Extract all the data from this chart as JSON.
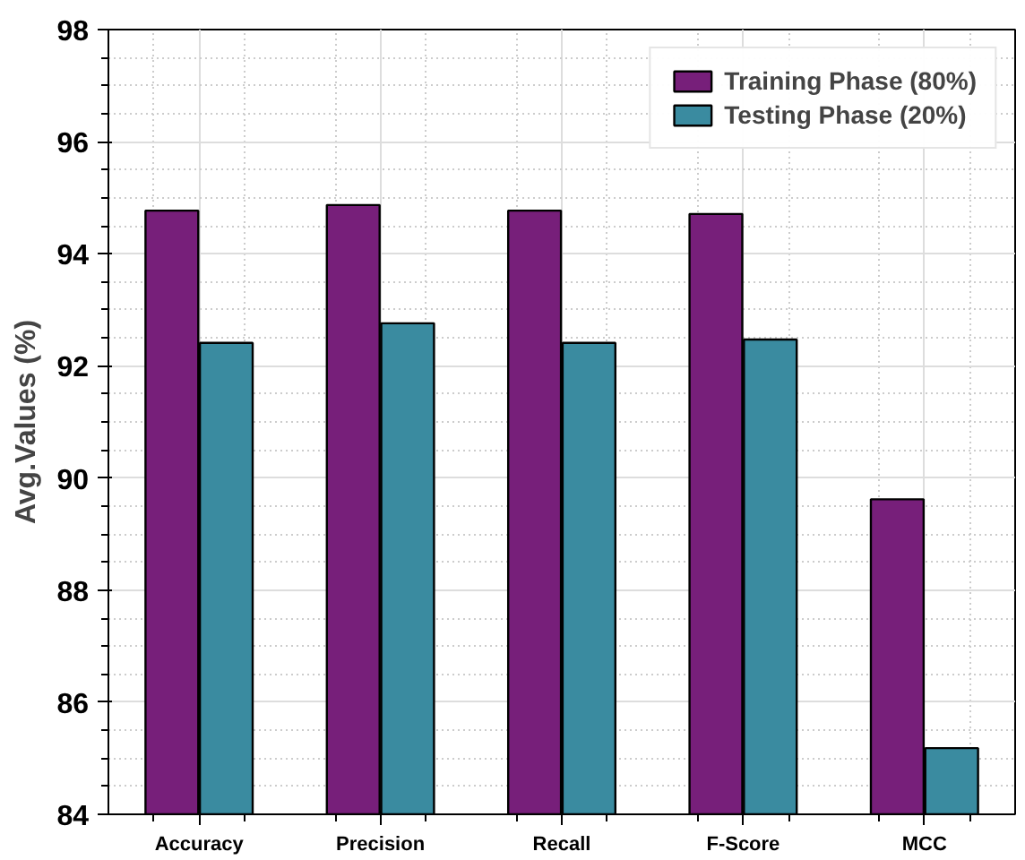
{
  "chart_data": {
    "type": "bar",
    "ylabel": "Avg.Values (%)",
    "categories": [
      "Accuracy",
      "Precision",
      "Recall",
      "F-Score",
      "MCC"
    ],
    "series": [
      {
        "name": "Training Phase (80%)",
        "color": "#771f7a",
        "values": [
          94.77,
          94.87,
          94.77,
          94.71,
          89.62
        ]
      },
      {
        "name": "Testing Phase (20%)",
        "color": "#3a8ba0",
        "values": [
          92.41,
          92.76,
          92.41,
          92.47,
          85.18
        ]
      }
    ],
    "ylim": [
      84,
      98
    ],
    "yticks": [
      84,
      86,
      88,
      90,
      92,
      94,
      96,
      98
    ],
    "grid": true,
    "legend": "top right"
  }
}
